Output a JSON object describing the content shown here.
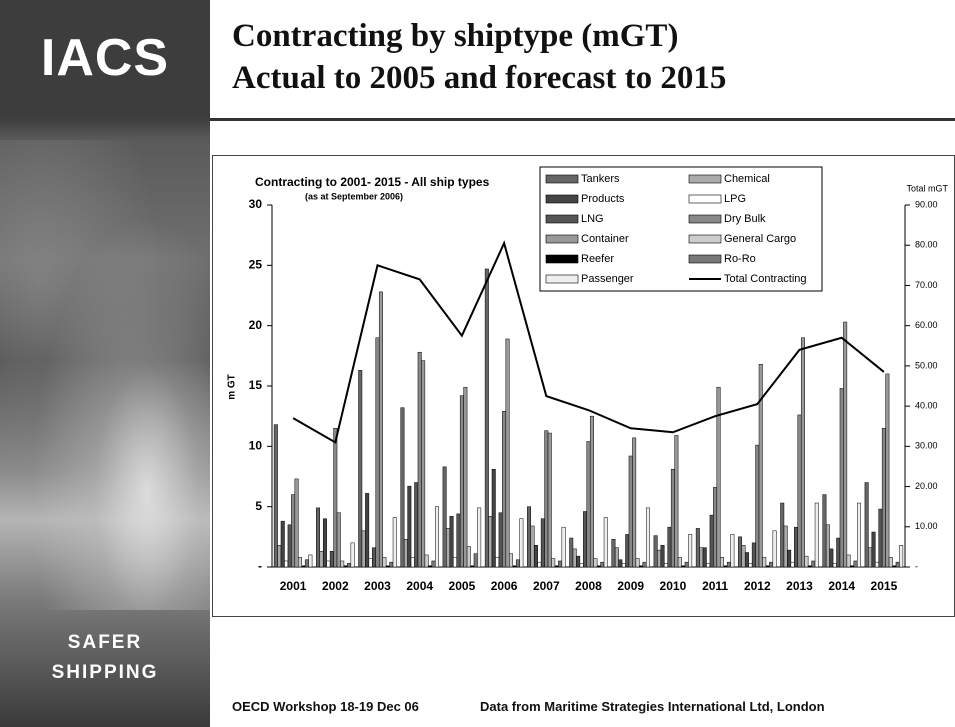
{
  "logo": "IACS",
  "tagline": [
    "SAFER",
    "SHIPPING"
  ],
  "title": [
    "Contracting by shiptype (mGT)",
    "Actual to 2005 and forecast to 2015"
  ],
  "footer": {
    "left": "OECD Workshop 18-19 Dec 06",
    "right": "Data from Maritime Strategies International Ltd, London"
  },
  "chart_data": {
    "type": "bar",
    "title": "Contracting to 2001- 2015 - All ship types",
    "subtitle": "(as at September 2006)",
    "y_label": "m GT",
    "y2_label": "Total  mGT",
    "categories": [
      "2001",
      "2002",
      "2003",
      "2004",
      "2005",
      "2006",
      "2007",
      "2008",
      "2009",
      "2010",
      "2011",
      "2012",
      "2013",
      "2014",
      "2015"
    ],
    "ylim": [
      0,
      30
    ],
    "yticks": [
      {
        "value": 0,
        "label": "-"
      },
      5,
      10,
      15,
      20,
      25,
      30
    ],
    "y2lim": [
      0,
      90
    ],
    "y2ticks": [
      {
        "value": 0,
        "label": "-"
      },
      {
        "value": 10,
        "label": "10.00"
      },
      {
        "value": 20,
        "label": "20.00"
      },
      {
        "value": 30,
        "label": "30.00"
      },
      {
        "value": 40,
        "label": "40.00"
      },
      {
        "value": 50,
        "label": "50.00"
      },
      {
        "value": 60,
        "label": "60.00"
      },
      {
        "value": 70,
        "label": "70.00"
      },
      {
        "value": 80,
        "label": "80.00"
      },
      {
        "value": 90,
        "label": "90.00"
      }
    ],
    "series": [
      {
        "name": "Tankers",
        "color": "#666666",
        "values": [
          11.8,
          4.9,
          16.3,
          13.2,
          8.3,
          24.7,
          5.0,
          2.4,
          2.3,
          2.6,
          3.2,
          2.5,
          5.3,
          6.0,
          7.0
        ]
      },
      {
        "name": "Chemical",
        "color": "#aaaaaa",
        "values": [
          1.8,
          1.3,
          3.0,
          2.3,
          3.2,
          4.2,
          3.4,
          1.5,
          1.6,
          1.4,
          1.6,
          1.8,
          3.4,
          3.5,
          1.6
        ]
      },
      {
        "name": "Products",
        "color": "#444444",
        "values": [
          3.8,
          4.0,
          6.1,
          6.7,
          4.2,
          8.1,
          1.8,
          0.9,
          0.6,
          1.8,
          1.6,
          1.2,
          1.4,
          1.5,
          2.9
        ]
      },
      {
        "name": "LPG",
        "color": "#ffffff",
        "values": [
          0.5,
          0.5,
          0.7,
          0.8,
          0.8,
          0.8,
          0.4,
          0.3,
          0.3,
          0.3,
          0.3,
          0.3,
          0.4,
          0.3,
          0.4
        ]
      },
      {
        "name": "LNG",
        "color": "#555555",
        "values": [
          3.5,
          1.3,
          1.6,
          7.0,
          4.4,
          4.5,
          4.0,
          4.6,
          2.7,
          3.3,
          4.3,
          2.0,
          3.3,
          2.4,
          4.8
        ]
      },
      {
        "name": "Dry Bulk",
        "color": "#888888",
        "values": [
          6.0,
          11.5,
          19.0,
          17.8,
          14.2,
          12.9,
          11.3,
          10.4,
          9.2,
          8.1,
          6.6,
          10.1,
          12.6,
          14.8,
          11.5
        ]
      },
      {
        "name": "Container",
        "color": "#999999",
        "values": [
          7.3,
          4.5,
          22.8,
          17.1,
          14.9,
          18.9,
          11.1,
          12.5,
          10.7,
          10.9,
          14.9,
          16.8,
          19.0,
          20.3,
          16.0
        ]
      },
      {
        "name": "General Cargo",
        "color": "#cccccc",
        "values": [
          0.8,
          0.5,
          0.8,
          1.0,
          1.7,
          1.1,
          0.7,
          0.7,
          0.7,
          0.8,
          0.8,
          0.8,
          0.9,
          1.0,
          0.8
        ]
      },
      {
        "name": "Reefer",
        "color": "#000000",
        "values": [
          0.1,
          0.1,
          0.1,
          0.1,
          0.1,
          0.1,
          0.1,
          0.1,
          0.1,
          0.1,
          0.1,
          0.1,
          0.1,
          0.1,
          0.1
        ]
      },
      {
        "name": "Ro-Ro",
        "color": "#777777",
        "values": [
          0.6,
          0.3,
          0.4,
          0.5,
          1.1,
          0.6,
          0.5,
          0.4,
          0.4,
          0.4,
          0.4,
          0.4,
          0.5,
          0.5,
          0.4
        ]
      },
      {
        "name": "Passenger",
        "color": "#eeeeee",
        "values": [
          1.0,
          2.0,
          4.1,
          5.0,
          4.9,
          4.0,
          3.3,
          4.1,
          4.9,
          2.7,
          2.7,
          3.0,
          5.3,
          5.3,
          1.8
        ]
      },
      {
        "name": "Total Contracting",
        "color": "#000000",
        "type": "line",
        "axis": "y2",
        "values": [
          37,
          31,
          75,
          71.5,
          57.5,
          80.5,
          42.5,
          39,
          34.5,
          33.5,
          37.5,
          40.5,
          54,
          57,
          48.5
        ]
      }
    ]
  }
}
